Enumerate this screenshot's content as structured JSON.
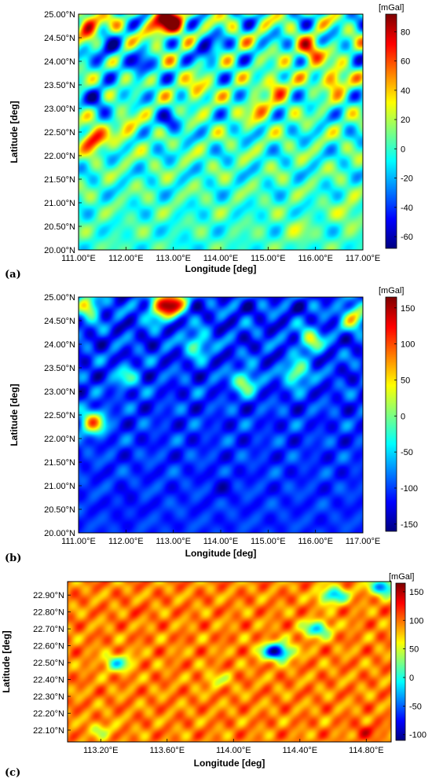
{
  "chart_data": [
    {
      "type": "heatmap",
      "panel_label": "(a)",
      "xlabel": "Longitude [deg]",
      "ylabel": "Latitude [deg]",
      "xlim": [
        111.0,
        117.0
      ],
      "ylim": [
        20.0,
        25.0
      ],
      "x_ticks": [
        "111.00°E",
        "112.00°E",
        "113.00°E",
        "114.00°E",
        "115.00°E",
        "116.00°E",
        "117.00°E"
      ],
      "y_ticks": [
        "20.00°N",
        "20.50°N",
        "21.00°N",
        "21.50°N",
        "22.00°N",
        "22.50°N",
        "23.00°N",
        "23.50°N",
        "24.00°N",
        "24.50°N",
        "25.00°N"
      ],
      "colorbar": {
        "unit": "[mGal]",
        "range": [
          -68,
          92
        ],
        "ticks": [
          "-60",
          "-40",
          "-20",
          "0",
          "20",
          "40",
          "60",
          "80"
        ]
      },
      "field": {
        "base": 0,
        "blobs": [
          {
            "lon": 111.2,
            "lat": 24.8,
            "v": 85
          },
          {
            "lon": 112.7,
            "lat": 24.75,
            "v": 70
          },
          {
            "lon": 113.0,
            "lat": 24.9,
            "v": 90
          },
          {
            "lon": 111.3,
            "lat": 22.35,
            "v": 85
          },
          {
            "lon": 115.9,
            "lat": 24.2,
            "v": 75
          },
          {
            "lon": 116.4,
            "lat": 23.6,
            "v": 70
          },
          {
            "lon": 115.2,
            "lat": 23.5,
            "v": 55
          },
          {
            "lon": 113.5,
            "lat": 23.4,
            "v": 45
          },
          {
            "lon": 114.8,
            "lat": 23.0,
            "v": 50
          },
          {
            "lon": 112.0,
            "lat": 22.6,
            "v": 35
          },
          {
            "lon": 111.6,
            "lat": 24.2,
            "v": -55
          },
          {
            "lon": 112.3,
            "lat": 23.9,
            "v": -50
          },
          {
            "lon": 113.7,
            "lat": 24.3,
            "v": -55
          },
          {
            "lon": 111.4,
            "lat": 23.2,
            "v": -50
          },
          {
            "lon": 112.9,
            "lat": 22.7,
            "v": -40
          },
          {
            "lon": 113.2,
            "lat": 20.2,
            "v": -10
          },
          {
            "lon": 115.6,
            "lat": 20.4,
            "v": 22
          },
          {
            "lon": 116.7,
            "lat": 20.8,
            "v": 28
          }
        ]
      }
    },
    {
      "type": "heatmap",
      "panel_label": "(b)",
      "xlabel": "Longitude [deg]",
      "ylabel": "Latitude [deg]",
      "xlim": [
        111.0,
        117.0
      ],
      "ylim": [
        20.0,
        25.0
      ],
      "x_ticks": [
        "111.00°E",
        "112.00°E",
        "113.00°E",
        "114.00°E",
        "115.00°E",
        "116.00°E",
        "117.00°E"
      ],
      "y_ticks": [
        "20.00°N",
        "20.50°N",
        "21.00°N",
        "21.50°N",
        "22.00°N",
        "22.50°N",
        "23.00°N",
        "23.50°N",
        "24.00°N",
        "24.50°N",
        "25.00°N"
      ],
      "colorbar": {
        "unit": "[mGal]",
        "range": [
          -160,
          165
        ],
        "ticks": [
          "-150",
          "-100",
          "-50",
          "0",
          "50",
          "100",
          "150"
        ]
      },
      "field": {
        "base": -105,
        "blobs": [
          {
            "lon": 111.2,
            "lat": 24.8,
            "v": 60
          },
          {
            "lon": 113.0,
            "lat": 24.9,
            "v": 155
          },
          {
            "lon": 112.7,
            "lat": 24.75,
            "v": 80
          },
          {
            "lon": 111.3,
            "lat": 22.35,
            "v": 100
          },
          {
            "lon": 116.8,
            "lat": 24.6,
            "v": 70
          },
          {
            "lon": 115.9,
            "lat": 24.1,
            "v": 40
          },
          {
            "lon": 114.5,
            "lat": 23.2,
            "v": 30
          },
          {
            "lon": 115.6,
            "lat": 23.4,
            "v": 35
          },
          {
            "lon": 113.5,
            "lat": 24.0,
            "v": 10
          },
          {
            "lon": 112.0,
            "lat": 23.3,
            "v": -20
          },
          {
            "lon": 114.0,
            "lat": 21.0,
            "v": -130
          },
          {
            "lon": 112.0,
            "lat": 20.6,
            "v": -125
          }
        ]
      }
    },
    {
      "type": "heatmap",
      "panel_label": "(c)",
      "xlabel": "Longitude [deg]",
      "ylabel": "Latitude [deg]",
      "xlim": [
        113.0,
        114.95
      ],
      "ylim": [
        22.03,
        22.98
      ],
      "x_ticks": [
        "113.20°E",
        "113.60°E",
        "114.00°E",
        "114.40°E",
        "114.80°E"
      ],
      "x_tick_values": [
        113.2,
        113.6,
        114.0,
        114.4,
        114.8
      ],
      "y_ticks": [
        "22.10°N",
        "22.20°N",
        "22.30°N",
        "22.40°N",
        "22.50°N",
        "22.60°N",
        "22.70°N",
        "22.80°N",
        "22.90°N"
      ],
      "y_tick_values": [
        22.1,
        22.2,
        22.3,
        22.4,
        22.5,
        22.6,
        22.7,
        22.8,
        22.9
      ],
      "colorbar": {
        "unit": "[mGal]",
        "range": [
          -110,
          165
        ],
        "ticks": [
          "-100",
          "-50",
          "0",
          "50",
          "100",
          "150"
        ]
      },
      "field": {
        "base": 95,
        "blobs": [
          {
            "lon": 113.2,
            "lat": 22.1,
            "v": 50
          },
          {
            "lon": 114.8,
            "lat": 22.1,
            "v": 125
          },
          {
            "lon": 113.9,
            "lat": 22.4,
            "v": 55
          },
          {
            "lon": 113.4,
            "lat": 22.8,
            "v": 105
          },
          {
            "lon": 114.3,
            "lat": 22.55,
            "v": 60
          },
          {
            "lon": 114.6,
            "lat": 22.9,
            "v": -40
          },
          {
            "lon": 114.25,
            "lat": 22.57,
            "v": -100
          },
          {
            "lon": 114.9,
            "lat": 22.95,
            "v": -60
          },
          {
            "lon": 114.5,
            "lat": 22.7,
            "v": -30
          },
          {
            "lon": 113.3,
            "lat": 22.5,
            "v": -10
          }
        ]
      }
    }
  ]
}
